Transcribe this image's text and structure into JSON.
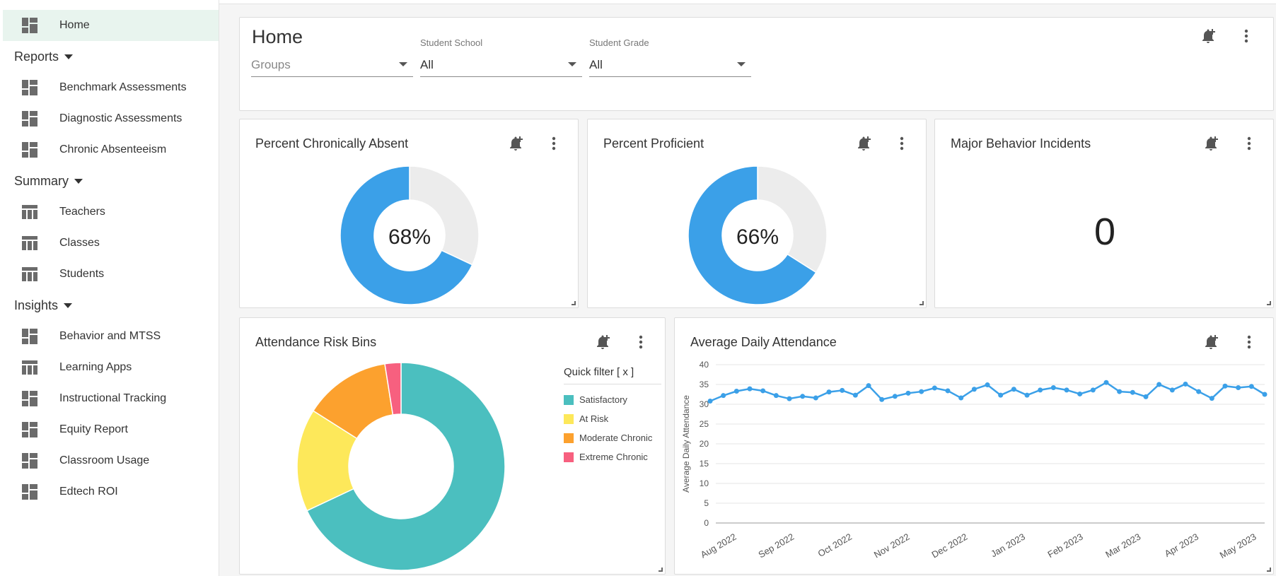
{
  "sidebar": {
    "home": {
      "label": "Home",
      "icon": "dashboard-icon"
    },
    "sections": [
      {
        "label": "Reports",
        "items": [
          {
            "label": "Benchmark Assessments",
            "icon": "dashboard-icon"
          },
          {
            "label": "Diagnostic Assessments",
            "icon": "dashboard-icon"
          },
          {
            "label": "Chronic Absenteeism",
            "icon": "dashboard-icon"
          }
        ]
      },
      {
        "label": "Summary",
        "items": [
          {
            "label": "Teachers",
            "icon": "table-icon"
          },
          {
            "label": "Classes",
            "icon": "table-icon"
          },
          {
            "label": "Students",
            "icon": "table-icon"
          }
        ]
      },
      {
        "label": "Insights",
        "items": [
          {
            "label": "Behavior and MTSS",
            "icon": "dashboard-icon"
          },
          {
            "label": "Learning Apps",
            "icon": "table-icon"
          },
          {
            "label": "Instructional Tracking",
            "icon": "dashboard-icon"
          },
          {
            "label": "Equity Report",
            "icon": "dashboard-icon"
          },
          {
            "label": "Classroom Usage",
            "icon": "dashboard-icon"
          },
          {
            "label": "Edtech ROI",
            "icon": "dashboard-icon"
          }
        ]
      }
    ]
  },
  "header": {
    "title": "Home",
    "filters": {
      "groups": {
        "label": "",
        "placeholder": "Groups"
      },
      "school": {
        "label": "Student School",
        "value": "All"
      },
      "grade": {
        "label": "Student Grade",
        "value": "All"
      }
    }
  },
  "cards": {
    "chronic": {
      "title": "Percent Chronically Absent",
      "value": "68%",
      "fraction": 0.68
    },
    "proficient": {
      "title": "Percent Proficient",
      "value": "66%",
      "fraction": 0.66
    },
    "behavior": {
      "title": "Major Behavior Incidents",
      "value": "0"
    },
    "risk": {
      "title": "Attendance Risk Bins",
      "quick_filter": "Quick filter [ x ]"
    },
    "ada": {
      "title": "Average Daily Attendance"
    }
  },
  "colors": {
    "accent": "#3ba0e8",
    "donut_empty": "#ececec",
    "satisfactory": "#4bbfbf",
    "at_risk": "#fde85a",
    "moderate": "#fca12e",
    "extreme": "#f7607f",
    "sidebar_active": "#e8f4ee"
  },
  "chart_data": [
    {
      "type": "pie",
      "title": "Attendance Risk Bins",
      "categories": [
        "Satisfactory",
        "At Risk",
        "Moderate Chronic",
        "Extreme Chronic"
      ],
      "values": [
        68,
        16,
        13.5,
        2.5
      ],
      "legend_position": "right"
    },
    {
      "type": "line",
      "title": "Average Daily Attendance",
      "ylabel": "Average Daily Attendance",
      "xlabel": "",
      "ylim": [
        0,
        40
      ],
      "yticks": [
        0,
        5,
        10,
        15,
        20,
        25,
        30,
        35,
        40
      ],
      "xticks": [
        "Aug 2022",
        "Sep 2022",
        "Oct 2022",
        "Nov 2022",
        "Dec 2022",
        "Jan 2023",
        "Feb 2023",
        "Mar 2023",
        "Apr 2023",
        "May 2023"
      ],
      "series": [
        {
          "name": "Average Daily Attendance",
          "values": [
            30.8,
            32.2,
            33.3,
            33.9,
            33.4,
            32.2,
            31.4,
            32,
            31.6,
            33.1,
            33.5,
            32.3,
            34.7,
            31.2,
            32,
            32.8,
            33.2,
            34.1,
            33.4,
            31.6,
            33.8,
            34.9,
            32.3,
            33.8,
            32.3,
            33.6,
            34.2,
            33.6,
            32.6,
            33.6,
            35.5,
            33.2,
            33,
            31.9,
            35,
            33.6,
            35.1,
            33.2,
            31.5,
            34.6,
            34.2,
            34.5,
            32.5
          ]
        }
      ]
    }
  ]
}
